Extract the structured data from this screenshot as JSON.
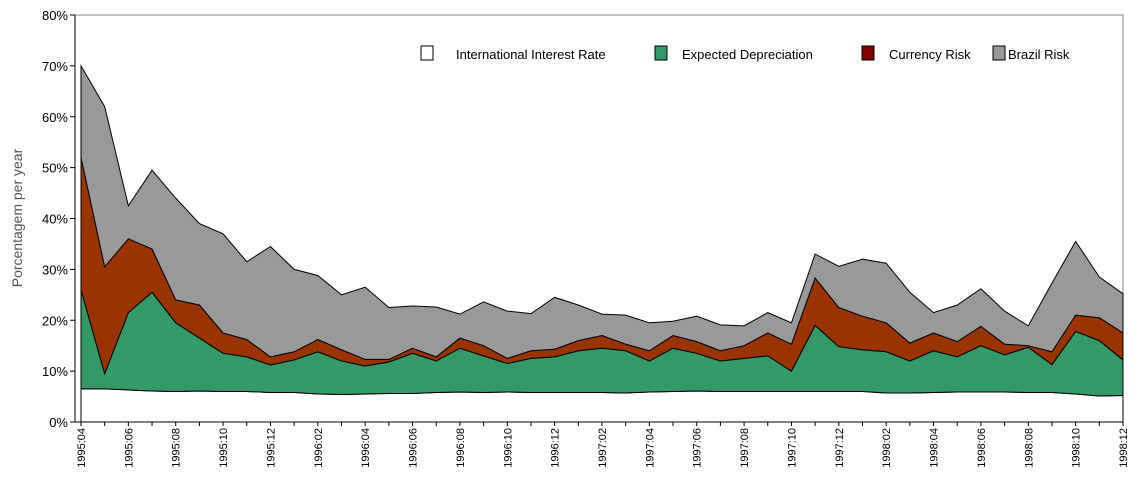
{
  "chart_data": {
    "type": "stacked_area",
    "y_label": "Porcentagem per year",
    "categories": [
      "1995:04",
      null,
      "1995:06",
      null,
      "1995:08",
      null,
      "1995:10",
      null,
      "1995:12",
      null,
      "1996:02",
      null,
      "1996:04",
      null,
      "1996:06",
      null,
      "1996:08",
      null,
      "1996:10",
      null,
      "1996:12",
      null,
      "1997:02",
      null,
      "1997:04",
      null,
      "1997:06",
      null,
      "1997:08",
      null,
      "1997:10",
      null,
      "1997:12",
      null,
      "1998:02",
      null,
      "1998:04",
      null,
      "1998:06",
      null,
      "1998:08",
      null,
      "1998:10",
      null,
      "1998:12"
    ],
    "series": [
      {
        "name": "International Interest Rate",
        "color": "#ffffff",
        "values": [
          6.5,
          6.5,
          6.3,
          6.1,
          6,
          6.1,
          6,
          6,
          5.8,
          5.8,
          5.5,
          5.4,
          5.5,
          5.6,
          5.6,
          5.8,
          5.9,
          5.8,
          5.9,
          5.8,
          5.8,
          5.8,
          5.8,
          5.7,
          5.9,
          6,
          6.1,
          6,
          6,
          6,
          6,
          6,
          6,
          6,
          5.7,
          5.7,
          5.8,
          5.9,
          5.9,
          5.9,
          5.8,
          5.8,
          5.5,
          5.1,
          5.2
        ]
      },
      {
        "name": "Expected Depreciation",
        "color": "#339966",
        "values": [
          19.5,
          3,
          15.2,
          19.4,
          13.5,
          10.4,
          7.5,
          6.8,
          5.4,
          6.4,
          8.3,
          6.6,
          5.5,
          6.2,
          7.9,
          6.2,
          8.6,
          7.2,
          5.6,
          6.7,
          7,
          8.2,
          8.7,
          8.3,
          6.1,
          8.5,
          7.4,
          6,
          6.5,
          7,
          4,
          13,
          8.8,
          8.2,
          8.1,
          6.3,
          8.2,
          6.9,
          9.1,
          7.3,
          8.9,
          5.5,
          12.3,
          10.9,
          7
        ]
      },
      {
        "name": "Currency Risk",
        "color": "#993300",
        "values": [
          26,
          21,
          14.5,
          8.5,
          4.5,
          6.5,
          4,
          3.4,
          1.6,
          1.6,
          2.4,
          2.2,
          1.3,
          0.5,
          1,
          0.8,
          2,
          2,
          1,
          1.5,
          1.5,
          2,
          2.5,
          1.3,
          2,
          2.5,
          2.3,
          2,
          2.5,
          4.5,
          5.3,
          9.3,
          7.7,
          6.6,
          5.7,
          3.5,
          3.5,
          3,
          3.8,
          2.1,
          0.3,
          2.5,
          3.2,
          4.5,
          5.3
        ]
      },
      {
        "name": "Brazil Risk",
        "color": "#999999",
        "values": [
          18,
          31.5,
          6.5,
          15.5,
          20,
          16,
          19.5,
          15.3,
          21.7,
          16.2,
          12.6,
          10.8,
          14.2,
          10.2,
          8.3,
          9.8,
          4.7,
          8.6,
          9.3,
          7.3,
          10.2,
          7,
          4.2,
          5.7,
          5.5,
          2.8,
          5,
          5.1,
          3.9,
          4,
          4.2,
          4.7,
          8.1,
          11.2,
          11.7,
          10,
          4,
          7.2,
          7.4,
          6.5,
          3.9,
          13.5,
          14.5,
          8,
          7.7
        ]
      }
    ],
    "ylim": [
      0,
      80
    ],
    "yticks": [
      {
        "value": 0,
        "label": "0%"
      },
      {
        "value": 10,
        "label": "10%"
      },
      {
        "value": 20,
        "label": "20%"
      },
      {
        "value": 30,
        "label": "30%"
      },
      {
        "value": 40,
        "label": "40%"
      },
      {
        "value": 50,
        "label": "50%"
      },
      {
        "value": 60,
        "label": "60%"
      },
      {
        "value": 70,
        "label": "70%"
      },
      {
        "value": 80,
        "label": "80%"
      }
    ],
    "legend": "top-right"
  }
}
